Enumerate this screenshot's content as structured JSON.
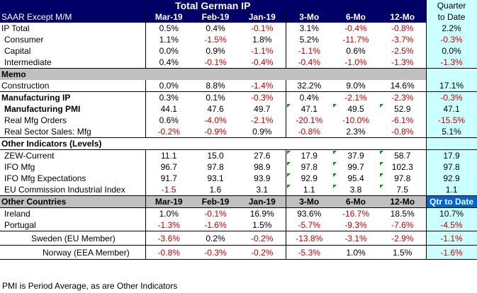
{
  "header": {
    "title": "Total German IP",
    "subtitle": "SAAR Except M/M",
    "quarter_line1": "Quarter",
    "quarter_line2": "to Date",
    "columns": [
      "Mar-19",
      "Feb-19",
      "Jan-19",
      "3-Mo",
      "6-Mo",
      "12-Mo"
    ]
  },
  "ip_rows": [
    {
      "label": "IP Total",
      "values": [
        "0.5%",
        "0.4%",
        "-0.1%",
        "3.1%",
        "-0.4%",
        "-0.8%"
      ],
      "qtd": "2.2%"
    },
    {
      "label": "Consumer",
      "values": [
        "1.1%",
        "-1.5%",
        "1.8%",
        "5.2%",
        "-11.7%",
        "-3.7%"
      ],
      "qtd": "-0.3%"
    },
    {
      "label": "Capital",
      "values": [
        "0.0%",
        "0.9%",
        "-1.1%",
        "-1.1%",
        "0.6%",
        "-2.5%"
      ],
      "qtd": "0.0%"
    },
    {
      "label": "Intermediate",
      "values": [
        "0.4%",
        "-0.1%",
        "-0.4%",
        "-0.4%",
        "-1.0%",
        "-1.3%"
      ],
      "qtd": "-1.3%"
    }
  ],
  "memo": {
    "label": "Memo",
    "construction": {
      "label": "Construction",
      "values": [
        "0.0%",
        "8.8%",
        "-1.4%",
        "32.2%",
        "9.0%",
        "14.6%"
      ],
      "qtd": "17.1%"
    }
  },
  "mfg_rows": [
    {
      "label": "Manufacturing IP",
      "values": [
        "0.3%",
        "0.1%",
        "-0.3%",
        "0.4%",
        "-2.1%",
        "-2.3%"
      ],
      "qtd": "-0.3%"
    },
    {
      "label": "Manufacturing PMI",
      "values": [
        "44.1",
        "47.6",
        "49.7",
        "47.1",
        "49.5",
        "52.9"
      ],
      "qtd": "47.1"
    },
    {
      "label": "Real Mfg Orders",
      "values": [
        "0.6%",
        "-4.0%",
        "-2.1%",
        "-20.1%",
        "-10.0%",
        "-6.1%"
      ],
      "qtd": "-15.5%"
    },
    {
      "label": "Real Sector Sales: Mfg",
      "values": [
        "-0.2%",
        "-0.9%",
        "0.9%",
        "-0.8%",
        "2.3%",
        "-0.8%"
      ],
      "qtd": "5.1%"
    }
  ],
  "other_indicators": {
    "label": "Other Indicators (Levels)",
    "rows": [
      {
        "label": "ZEW-Current",
        "values": [
          "11.1",
          "15.0",
          "27.6",
          "17.9",
          "37.9",
          "58.7"
        ],
        "qtd": "17.9"
      },
      {
        "label": "IFO Mfg",
        "values": [
          "96.7",
          "97.8",
          "98.9",
          "97.8",
          "99.7",
          "102.3"
        ],
        "qtd": "97.8"
      },
      {
        "label": "IFO Mfg Expectations",
        "values": [
          "91.7",
          "93.1",
          "93.9",
          "92.9",
          "95.4",
          "97.8"
        ],
        "qtd": "92.9"
      },
      {
        "label": "EU Commission Industrial Index",
        "values": [
          "-1.5",
          "1.6",
          "3.1",
          "1.1",
          "3.8",
          "7.5"
        ],
        "qtd": "1.1"
      }
    ]
  },
  "other_countries": {
    "label": "Other Countries",
    "qtd_label": "Qtr to Date",
    "columns": [
      "Mar-19",
      "Feb-19",
      "Jan-19",
      "3-Mo",
      "6-Mo",
      "12-Mo"
    ],
    "rows": [
      {
        "label": "Ireland",
        "values": [
          "1.0%",
          "-0.1%",
          "16.9%",
          "93.6%",
          "-16.7%",
          "18.5%"
        ],
        "qtd": "10.7%"
      },
      {
        "label": "Portugal",
        "values": [
          "-1.3%",
          "-1.6%",
          "1.5%",
          "-5.7%",
          "-9.3%",
          "-7.6%"
        ],
        "qtd": "-4.5%"
      },
      {
        "label": "Sweden (EU Member)",
        "values": [
          "-3.6%",
          "0.2%",
          "-0.2%",
          "-13.8%",
          "-3.1%",
          "-2.9%"
        ],
        "qtd": "-1.1%"
      },
      {
        "label": "Norway (EEA Member)",
        "values": [
          "-0.8%",
          "-0.3%",
          "-0.2%",
          "-5.3%",
          "1.0%",
          "1.5%"
        ],
        "qtd": "-1.6%"
      }
    ]
  },
  "footer": "PMI is Period Average, as are Other Indicators",
  "colors": {
    "header_bg": "#000066",
    "quarter_bg": "#ccffff",
    "memo_bg": "#c0c0c0",
    "negative": "#c00000",
    "comment_marker": "#009900"
  }
}
